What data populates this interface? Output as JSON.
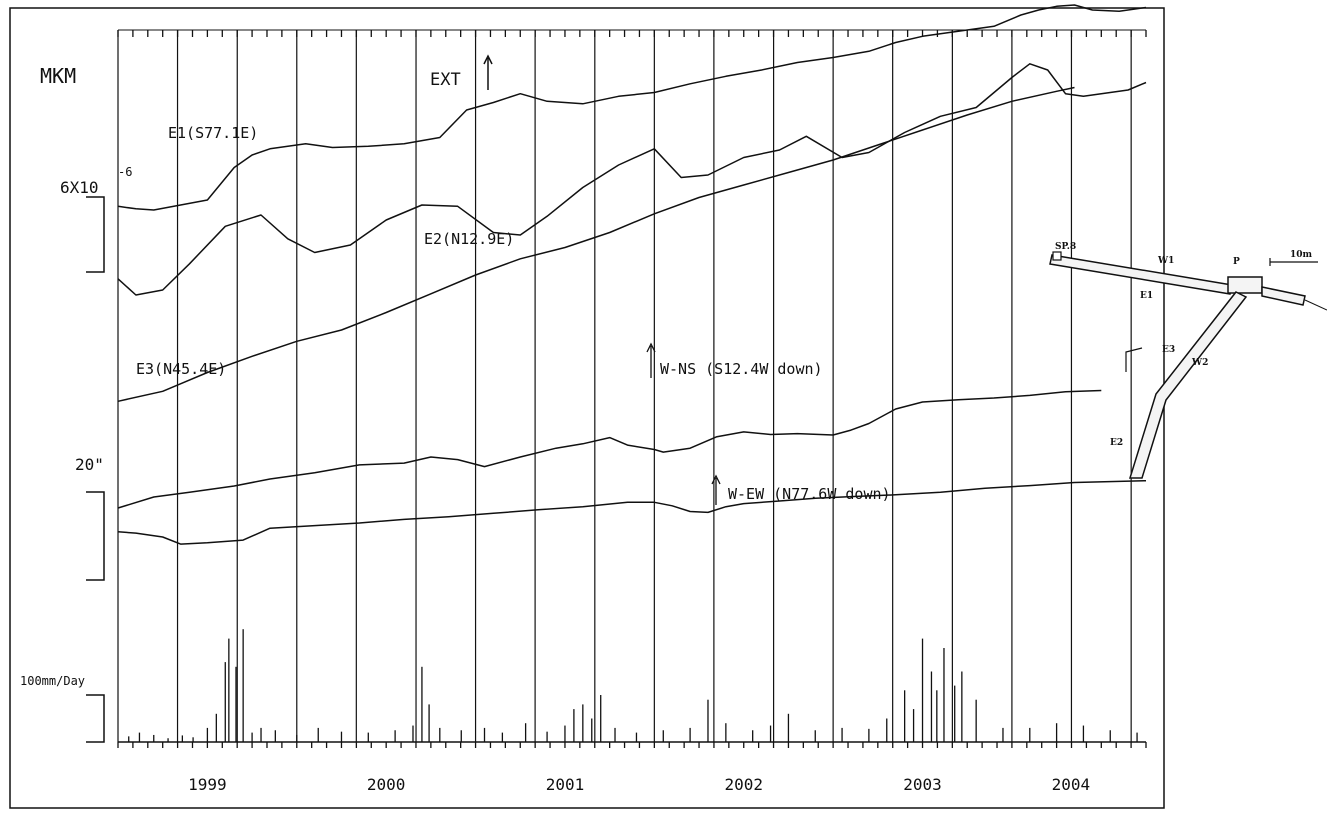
{
  "chart_data": {
    "type": "line",
    "title": "",
    "units_label": "MKM",
    "extension_marker": "EXT",
    "x_axis": {
      "start": 1998.5,
      "end": 2004.25,
      "year_labels": [
        "1999",
        "2000",
        "2001",
        "2002",
        "2003",
        "2004"
      ],
      "year_label_positions": [
        1999.0,
        2000.0,
        2001.0,
        2002.0,
        2003.0,
        2003.83
      ],
      "gridline_years": [
        1998.5,
        1998.833,
        1999.167,
        1999.5,
        1999.833,
        2000.167,
        2000.5,
        2000.833,
        2001.167,
        2001.5,
        2001.833,
        2002.167,
        2002.5,
        2002.833,
        2003.167,
        2003.5,
        2003.833,
        2004.167
      ]
    },
    "scale_bars": {
      "strain": {
        "label_base": "6X10",
        "label_exp": "-6"
      },
      "tilt": {
        "label": "20\""
      },
      "rain": {
        "label": "100mm/Day"
      }
    },
    "series": [
      {
        "name": "E1(S77.1E)",
        "group": "strain",
        "x": [
          1998.5,
          1998.6,
          1998.7,
          1998.85,
          1999.0,
          1999.15,
          1999.25,
          1999.35,
          1999.55,
          1999.7,
          1999.9,
          2000.1,
          2000.3,
          2000.45,
          2000.6,
          2000.75,
          2000.9,
          2001.1,
          2001.3,
          2001.5,
          2001.7,
          2001.9,
          2002.1,
          2002.3,
          2002.5,
          2002.7,
          2002.85,
          2003.0,
          2003.2,
          2003.4,
          2003.55,
          2003.65,
          2003.75,
          2003.85,
          2003.95,
          2004.1,
          2004.25
        ],
        "y": [
          0.3,
          0.1,
          0.0,
          0.4,
          0.8,
          3.4,
          4.4,
          4.9,
          5.3,
          5.0,
          5.1,
          5.3,
          5.8,
          8.0,
          8.6,
          9.3,
          8.7,
          8.5,
          9.1,
          9.4,
          10.1,
          10.7,
          11.2,
          11.8,
          12.2,
          12.7,
          13.4,
          13.9,
          14.3,
          14.7,
          15.6,
          16.0,
          16.3,
          16.4,
          16.0,
          15.9,
          16.2
        ]
      },
      {
        "name": "E2(N12.9E)",
        "group": "strain",
        "x": [
          1998.5,
          1998.6,
          1998.75,
          1998.9,
          1999.1,
          1999.3,
          1999.45,
          1999.6,
          1999.8,
          2000.0,
          2000.2,
          2000.4,
          2000.6,
          2000.75,
          2000.9,
          2001.1,
          2001.3,
          2001.5,
          2001.65,
          2001.8,
          2002.0,
          2002.2,
          2002.35,
          2002.55,
          2002.7,
          2002.9,
          2003.1,
          2003.3,
          2003.5,
          2003.6,
          2003.7,
          2003.8,
          2003.9,
          2004.05,
          2004.15,
          2004.25
        ],
        "y": [
          -5.5,
          -6.8,
          -6.4,
          -4.3,
          -1.3,
          -0.4,
          -2.3,
          -3.4,
          -2.8,
          -0.8,
          0.4,
          0.3,
          -1.8,
          -2.0,
          -0.5,
          1.8,
          3.6,
          4.9,
          2.6,
          2.8,
          4.2,
          4.8,
          5.9,
          4.2,
          4.6,
          6.2,
          7.5,
          8.2,
          10.6,
          11.7,
          11.2,
          9.3,
          9.1,
          9.4,
          9.6,
          10.2
        ]
      },
      {
        "name": "E3(N45.4E)",
        "group": "strain",
        "x": [
          1998.5,
          1998.75,
          1999.0,
          1999.25,
          1999.5,
          1999.75,
          2000.0,
          2000.25,
          2000.5,
          2000.75,
          2001.0,
          2001.25,
          2001.5,
          2001.75,
          2002.0,
          2002.25,
          2002.5,
          2002.75,
          2003.0,
          2003.25,
          2003.5,
          2003.75,
          2003.85
        ],
        "y": [
          -15.3,
          -14.5,
          -13.0,
          -11.7,
          -10.5,
          -9.6,
          -8.2,
          -6.7,
          -5.2,
          -3.9,
          -3.0,
          -1.8,
          -0.3,
          1.0,
          2.0,
          3.0,
          4.0,
          5.2,
          6.4,
          7.6,
          8.7,
          9.5,
          9.8
        ]
      },
      {
        "name": "W-NS (S12.4W down)",
        "group": "tilt",
        "x": [
          1998.5,
          1998.7,
          1998.9,
          1999.15,
          1999.35,
          1999.6,
          1999.85,
          2000.1,
          2000.25,
          2000.4,
          2000.55,
          2000.75,
          2000.95,
          2001.1,
          2001.25,
          2001.35,
          2001.5,
          2001.55,
          2001.7,
          2001.85,
          2002.0,
          2002.15,
          2002.3,
          2002.5,
          2002.6,
          2002.7,
          2002.85,
          2003.0,
          2003.2,
          2003.4,
          2003.6,
          2003.8,
          2004.0
        ],
        "y": [
          0.0,
          2.5,
          3.6,
          5.0,
          6.6,
          8.0,
          9.8,
          10.2,
          11.6,
          11.0,
          9.4,
          11.6,
          13.6,
          14.6,
          16.0,
          14.3,
          13.3,
          12.7,
          13.6,
          16.2,
          17.3,
          16.7,
          16.9,
          16.6,
          17.7,
          19.2,
          22.5,
          24.1,
          24.6,
          25.0,
          25.6,
          26.4,
          26.7
        ]
      },
      {
        "name": "W-EW (N77.6W down)",
        "group": "tilt",
        "x": [
          1998.5,
          1998.6,
          1998.75,
          1998.85,
          1999.0,
          1999.2,
          1999.35,
          1999.6,
          1999.85,
          2000.1,
          2000.35,
          2000.6,
          2000.85,
          2001.1,
          2001.35,
          2001.5,
          2001.6,
          2001.7,
          2001.8,
          2001.9,
          2002.0,
          2002.2,
          2002.4,
          2002.6,
          2002.85,
          2003.1,
          2003.35,
          2003.6,
          2003.85,
          2004.25
        ],
        "y": [
          -5.4,
          -5.7,
          -6.6,
          -8.2,
          -7.9,
          -7.3,
          -4.6,
          -4.0,
          -3.4,
          -2.6,
          -2.0,
          -1.2,
          -0.4,
          0.3,
          1.3,
          1.3,
          0.5,
          -0.8,
          -1.0,
          0.3,
          1.0,
          1.6,
          2.2,
          2.6,
          3.0,
          3.6,
          4.5,
          5.1,
          5.8,
          6.2
        ]
      }
    ],
    "rainfall": {
      "name": "Daily rainfall",
      "units": "mm/day",
      "x": [
        1998.56,
        1998.62,
        1998.7,
        1998.78,
        1998.86,
        1998.92,
        1999.0,
        1999.05,
        1999.1,
        1999.12,
        1999.16,
        1999.2,
        1999.25,
        1999.3,
        1999.38,
        1999.5,
        1999.62,
        1999.75,
        1999.9,
        2000.05,
        2000.15,
        2000.2,
        2000.24,
        2000.3,
        2000.42,
        2000.55,
        2000.65,
        2000.78,
        2000.9,
        2001.0,
        2001.05,
        2001.1,
        2001.15,
        2001.2,
        2001.28,
        2001.4,
        2001.55,
        2001.7,
        2001.8,
        2001.9,
        2002.05,
        2002.15,
        2002.25,
        2002.4,
        2002.55,
        2002.7,
        2002.8,
        2002.9,
        2002.95,
        2003.0,
        2003.05,
        2003.08,
        2003.12,
        2003.18,
        2003.22,
        2003.3,
        2003.45,
        2003.6,
        2003.75,
        2003.9,
        2004.05,
        2004.2
      ],
      "values": [
        12,
        20,
        15,
        8,
        14,
        10,
        30,
        60,
        170,
        220,
        160,
        240,
        20,
        30,
        25,
        15,
        30,
        22,
        20,
        25,
        35,
        160,
        80,
        30,
        25,
        30,
        20,
        40,
        22,
        35,
        70,
        80,
        50,
        100,
        30,
        20,
        25,
        30,
        90,
        40,
        25,
        35,
        60,
        25,
        30,
        28,
        50,
        110,
        70,
        220,
        150,
        110,
        200,
        120,
        150,
        90,
        30,
        30,
        40,
        35,
        25,
        20
      ]
    },
    "grid": true,
    "legend": "none (series labelled inline)"
  },
  "inset_diagram": {
    "scale_label": "10m",
    "point_labels": [
      "SP.8",
      "W1",
      "P",
      "E1",
      "E3",
      "W2",
      "E2"
    ]
  }
}
